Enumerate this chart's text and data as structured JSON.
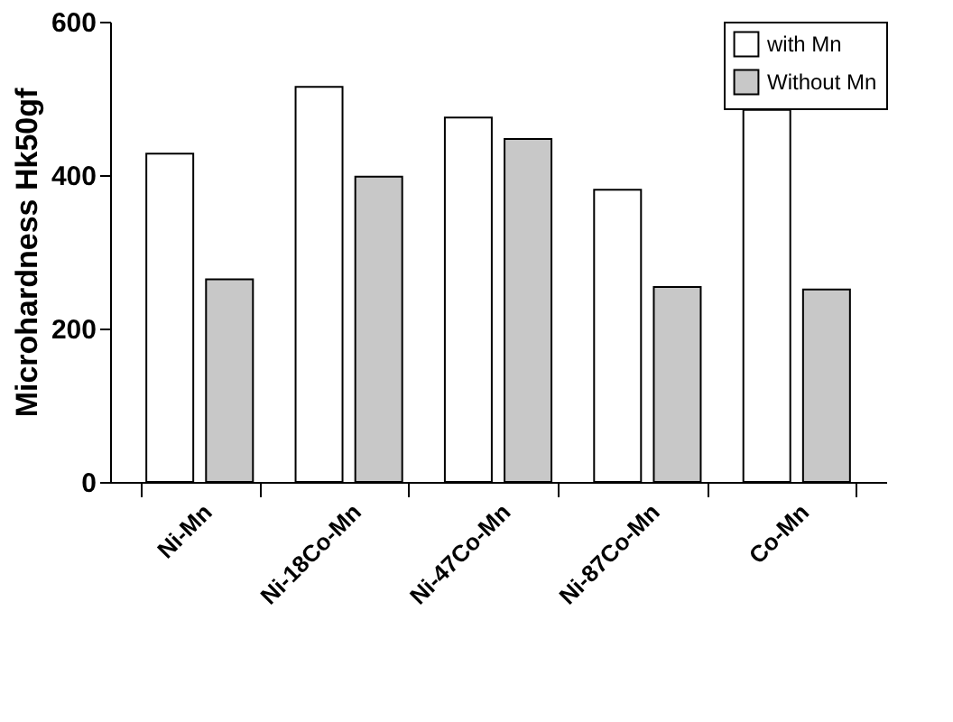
{
  "chart_data": {
    "type": "bar",
    "ylabel": "Microhardness Hk50gf",
    "categories": [
      "Ni-Mn",
      "Ni-18Co-Mn",
      "Ni-47Co-Mn",
      "Ni-87Co-Mn",
      "Co-Mn"
    ],
    "series": [
      {
        "name": "with Mn",
        "color": "#ffffff",
        "values": [
          428,
          515,
          475,
          381,
          485
        ]
      },
      {
        "name": "Without Mn",
        "color": "#c8c8c8",
        "values": [
          264,
          398,
          447,
          254,
          251
        ]
      }
    ],
    "ylim": [
      0,
      600
    ],
    "yticks": [
      0,
      200,
      400,
      600
    ],
    "grid": false,
    "legend": "top right"
  }
}
